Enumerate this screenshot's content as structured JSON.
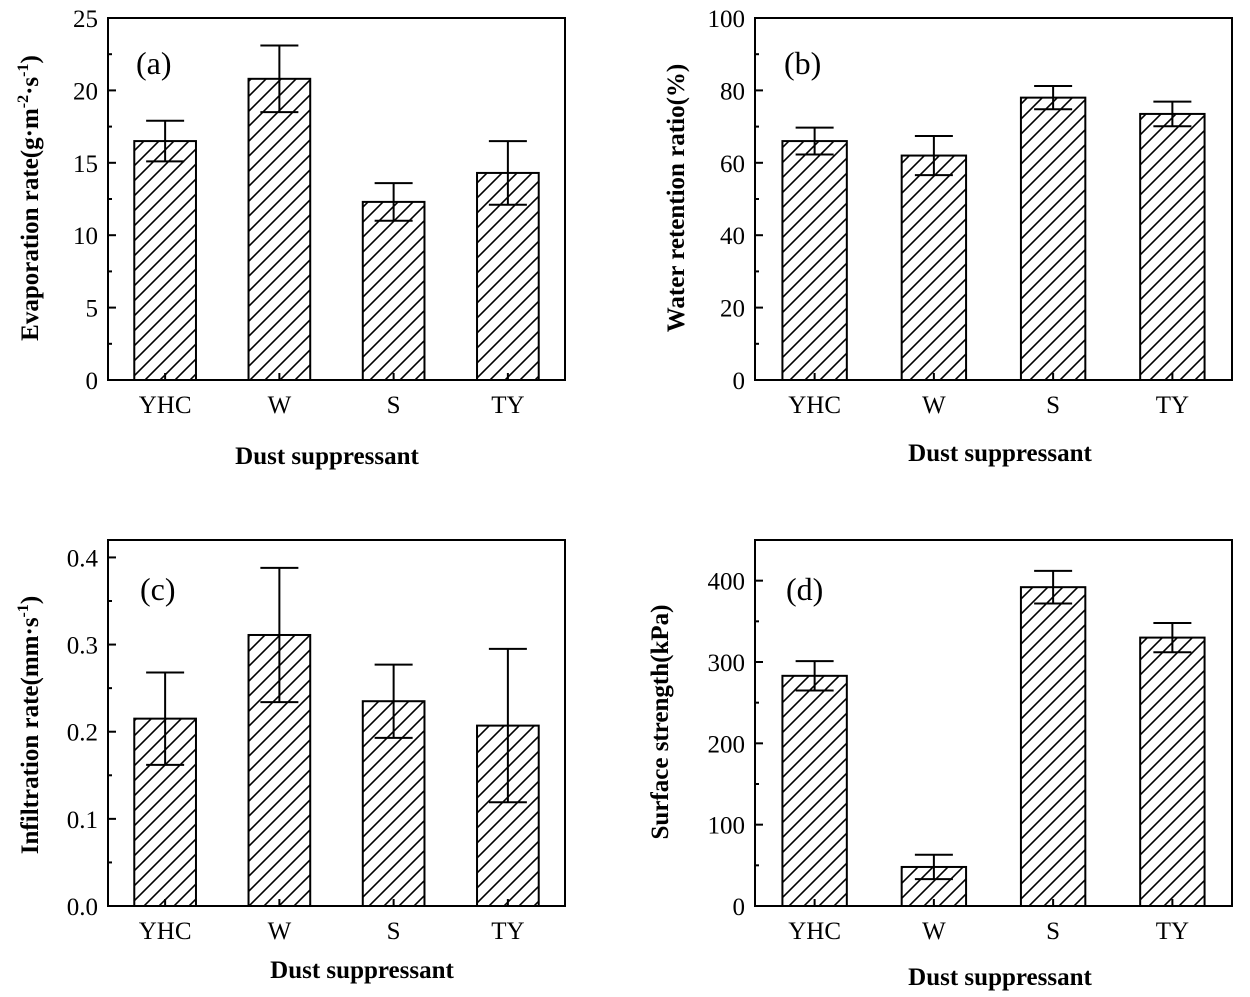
{
  "chart_data": [
    {
      "type": "bar",
      "panel_label": "(a)",
      "categories": [
        "YHC",
        "W",
        "S",
        "TY"
      ],
      "values": [
        16.5,
        20.8,
        12.3,
        14.3
      ],
      "errors": [
        1.4,
        2.3,
        1.3,
        2.2
      ],
      "xlabel": "Dust suppressant",
      "ylabel_parts": {
        "a": "Evaporation rate(g·m",
        "b": "-2",
        "c": "·s",
        "d": "-1",
        "e": ")"
      },
      "ylim": [
        0,
        25
      ],
      "yticks": [
        0,
        5,
        10,
        15,
        20,
        25
      ],
      "ytick_labels": [
        "0",
        "5",
        "10",
        "15",
        "20",
        "25"
      ]
    },
    {
      "type": "bar",
      "panel_label": "(b)",
      "categories": [
        "YHC",
        "W",
        "S",
        "TY"
      ],
      "values": [
        66,
        62,
        78,
        73.5
      ],
      "errors": [
        3.7,
        5.4,
        3.2,
        3.4
      ],
      "xlabel": "Dust suppressant",
      "ylabel": "Water retention ratio(%)",
      "ylim": [
        0,
        100
      ],
      "yticks": [
        0,
        20,
        40,
        60,
        80,
        100
      ],
      "ytick_labels": [
        "0",
        "20",
        "40",
        "60",
        "80",
        "100"
      ]
    },
    {
      "type": "bar",
      "panel_label": "(c)",
      "categories": [
        "YHC",
        "W",
        "S",
        "TY"
      ],
      "values": [
        0.215,
        0.311,
        0.235,
        0.207
      ],
      "errors": [
        0.053,
        0.077,
        0.042,
        0.088
      ],
      "xlabel": "Dust suppressant",
      "ylabel_parts": {
        "a": "Infiltration rate(mm·s",
        "b": "-1",
        "c": ")"
      },
      "ylim": [
        0,
        0.42
      ],
      "yticks": [
        0,
        0.1,
        0.2,
        0.3,
        0.4
      ],
      "ytick_labels": [
        "0.0",
        "0.1",
        "0.2",
        "0.3",
        "0.4"
      ]
    },
    {
      "type": "bar",
      "panel_label": "(d)",
      "categories": [
        "YHC",
        "W",
        "S",
        "TY"
      ],
      "values": [
        283,
        48,
        392,
        330
      ],
      "errors": [
        18,
        15,
        20,
        18
      ],
      "xlabel": "Dust suppressant",
      "ylabel": "Surface strength(kPa)",
      "ylim": [
        0,
        450
      ],
      "yticks": [
        0,
        100,
        200,
        300,
        400
      ],
      "ytick_labels": [
        "0",
        "100",
        "200",
        "300",
        "400"
      ]
    }
  ]
}
